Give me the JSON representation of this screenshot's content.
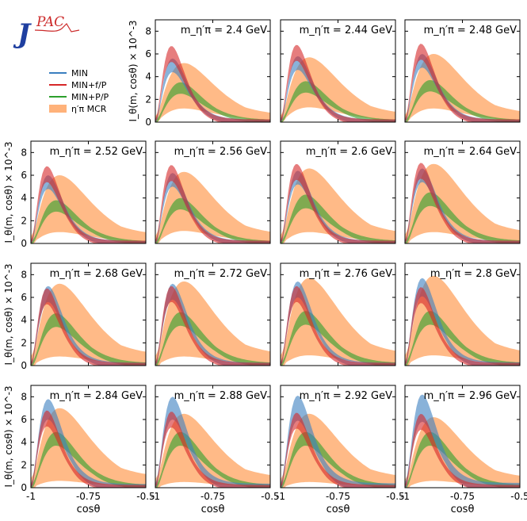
{
  "logo": {
    "letter": "J",
    "subtitle": "PAC"
  },
  "legend": [
    {
      "key": "min",
      "label": "MIN",
      "color": "#3a7fc0",
      "style": "line"
    },
    {
      "key": "minfp",
      "label": "MIN+f/P",
      "color": "#d62728",
      "style": "line"
    },
    {
      "key": "minpp",
      "label": "MIN+P/P",
      "color": "#2ca02c",
      "style": "line"
    },
    {
      "key": "mcr",
      "label": "η′π MCR",
      "color": "#ffb27a",
      "style": "patch"
    }
  ],
  "chart_data": {
    "type": "area",
    "title": "",
    "xlabel": "cosθ",
    "ylabel": "I_θ(m, cosθ) × 10^-3",
    "xlim": [
      -1,
      -0.5
    ],
    "ylim": [
      0,
      9
    ],
    "xticks": [
      -1,
      -0.75,
      -0.5
    ],
    "xtick_labels": [
      "-1",
      "-0.75",
      "-0.5"
    ],
    "yticks": [
      0,
      2,
      4,
      6,
      8
    ],
    "ytick_labels": [
      "0",
      "2",
      "4",
      "6",
      "8"
    ],
    "panel_label_prefix": "m_η′π =",
    "panel_label_unit": "GeV",
    "panels": [
      {
        "mass": "2.4",
        "min": [
          0.94,
          5.0,
          0.6
        ],
        "minfp": [
          0.93,
          6.0,
          0.7
        ],
        "minpp": [
          0.88,
          3.0,
          0.5
        ],
        "mcr": [
          0.92,
          3.2,
          2.0
        ]
      },
      {
        "mass": "2.44",
        "min": [
          0.94,
          5.2,
          0.6
        ],
        "minfp": [
          0.93,
          6.1,
          0.7
        ],
        "minpp": [
          0.88,
          3.1,
          0.5
        ],
        "mcr": [
          0.92,
          3.5,
          2.2
        ]
      },
      {
        "mass": "2.48",
        "min": [
          0.94,
          5.4,
          0.6
        ],
        "minfp": [
          0.93,
          6.2,
          0.7
        ],
        "minpp": [
          0.88,
          3.2,
          0.5
        ],
        "mcr": [
          0.92,
          3.6,
          2.4
        ]
      },
      {
        "mass": "2.52",
        "min": [
          0.95,
          5.4,
          0.6
        ],
        "minfp": [
          0.94,
          6.1,
          0.7
        ],
        "minpp": [
          0.88,
          3.3,
          0.5
        ],
        "mcr": [
          0.92,
          3.5,
          2.5
        ]
      },
      {
        "mass": "2.56",
        "min": [
          0.95,
          5.6,
          0.6
        ],
        "minfp": [
          0.94,
          6.2,
          0.7
        ],
        "minpp": [
          0.88,
          3.5,
          0.5
        ],
        "mcr": [
          0.92,
          3.7,
          2.6
        ]
      },
      {
        "mass": "2.6",
        "min": [
          0.95,
          5.8,
          0.6
        ],
        "minfp": [
          0.94,
          6.3,
          0.7
        ],
        "minpp": [
          0.88,
          3.7,
          0.6
        ],
        "mcr": [
          0.93,
          3.8,
          2.8
        ]
      },
      {
        "mass": "2.64",
        "min": [
          0.95,
          6.0,
          0.6
        ],
        "minfp": [
          0.94,
          6.4,
          0.7
        ],
        "minpp": [
          0.88,
          3.9,
          0.6
        ],
        "mcr": [
          0.93,
          4.0,
          3.0
        ]
      },
      {
        "mass": "2.68",
        "min": [
          0.95,
          6.3,
          0.7
        ],
        "minfp": [
          0.94,
          6.1,
          0.7
        ],
        "minpp": [
          0.89,
          4.0,
          0.6
        ],
        "mcr": [
          0.93,
          4.0,
          3.2
        ]
      },
      {
        "mass": "2.72",
        "min": [
          0.95,
          6.5,
          0.7
        ],
        "minfp": [
          0.94,
          6.3,
          0.7
        ],
        "minpp": [
          0.89,
          4.1,
          0.6
        ],
        "mcr": [
          0.93,
          4.1,
          3.3
        ]
      },
      {
        "mass": "2.76",
        "min": [
          0.95,
          6.7,
          0.7
        ],
        "minfp": [
          0.94,
          6.3,
          0.7
        ],
        "minpp": [
          0.89,
          4.2,
          0.6
        ],
        "mcr": [
          0.93,
          4.3,
          3.4
        ]
      },
      {
        "mass": "2.8",
        "min": [
          0.95,
          6.9,
          0.8
        ],
        "minfp": [
          0.94,
          6.2,
          0.7
        ],
        "minpp": [
          0.89,
          4.2,
          0.6
        ],
        "mcr": [
          0.93,
          4.4,
          3.5
        ]
      },
      {
        "mass": "2.84",
        "min": [
          0.95,
          6.9,
          0.9
        ],
        "minfp": [
          0.94,
          6.1,
          0.7
        ],
        "minpp": [
          0.89,
          4.3,
          0.6
        ],
        "mcr": [
          0.93,
          3.8,
          3.2
        ]
      },
      {
        "mass": "2.88",
        "min": [
          0.95,
          7.0,
          1.0
        ],
        "minfp": [
          0.94,
          6.0,
          0.7
        ],
        "minpp": [
          0.89,
          4.3,
          0.6
        ],
        "mcr": [
          0.93,
          3.5,
          3.0
        ]
      },
      {
        "mass": "2.92",
        "min": [
          0.95,
          7.0,
          1.1
        ],
        "minfp": [
          0.94,
          5.9,
          0.7
        ],
        "minpp": [
          0.89,
          4.3,
          0.6
        ],
        "mcr": [
          0.93,
          3.5,
          3.0
        ]
      },
      {
        "mass": "2.96",
        "min": [
          0.95,
          7.0,
          1.2
        ],
        "minfp": [
          0.94,
          5.8,
          0.7
        ],
        "minpp": [
          0.89,
          4.3,
          0.6
        ],
        "mcr": [
          0.93,
          3.4,
          2.8
        ]
      }
    ],
    "curve_note": "each band is [peak cosθ offset from -1 scaled as peak position fraction, peak value, half band width]"
  }
}
